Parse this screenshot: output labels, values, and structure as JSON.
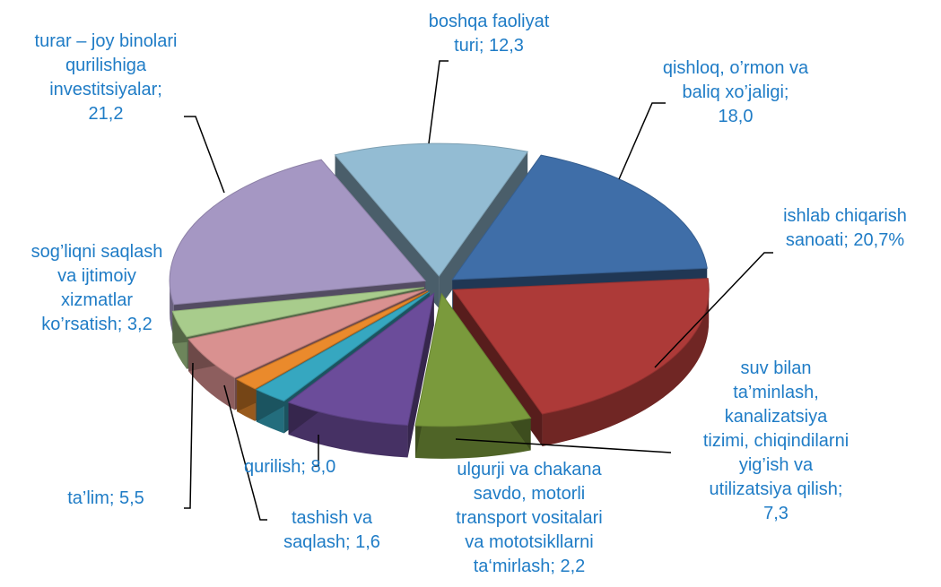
{
  "chart_data": {
    "type": "pie3d",
    "values": [
      12.3,
      18.0,
      20.7,
      7.3,
      8.0,
      2.2,
      1.6,
      5.5,
      3.2,
      21.2
    ],
    "value_labels": [
      "boshqa faoliyat turi; 12,3 %",
      "qishloq, o’rmon va baliq xo’jaligi; 18,0 %",
      "ishlab chiqarish sanoati; 20,7%",
      "suv bilan ta’minlash, kanalizatsiya tizimi, chiqindilarni yig’ish va utilizatsiya qilish; 7,3 %",
      "qurilish; 8,0 %",
      "ulgurji va chakana savdo, motorli transport vositalari va mototsikllarni ta‘mirlash; 2,2 %",
      "tashish va saqlash; 1,6 %",
      "ta’lim; 5,5 %",
      "sog’liqni saqlash va ijtimoiy xizmatlar ko’rsatish; 3,2 %",
      "turar – joy binolari qurilishiga investitsiyalar; 21,2 %"
    ],
    "colors": [
      "#93bcd3",
      "#3f6ea8",
      "#ad3a38",
      "#7a9a3c",
      "#6b4c9a",
      "#36a7c0",
      "#ea8a2c",
      "#d99190",
      "#a8cc8c",
      "#a597c3"
    ]
  }
}
